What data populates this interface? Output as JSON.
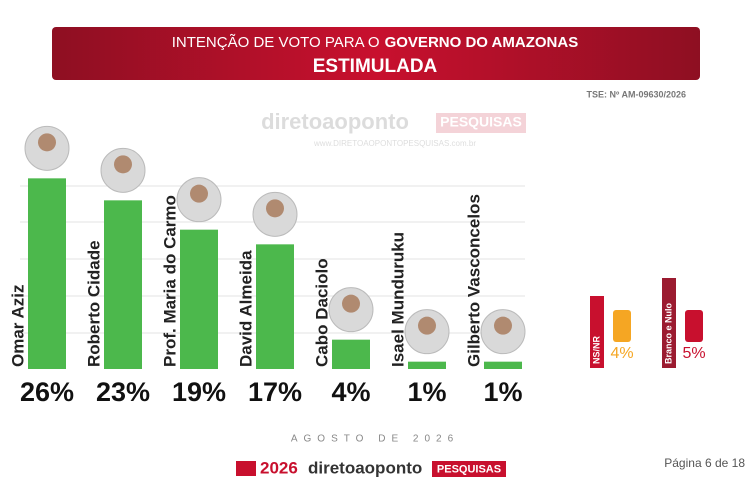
{
  "chart_data": {
    "type": "bar",
    "title_parts": [
      "INTENÇÃO DE VOTO PARA O",
      "GOVERNO DO AMAZONAS"
    ],
    "subtitle": "ESTIMULADA",
    "registration": "TSE: Nº AM-09630/2026",
    "watermark": [
      "diretoaoponto",
      "PESQUISAS",
      "www.DIRETOAOPONTOPESQUISAS.com.br"
    ],
    "categories": [
      "Omar Aziz",
      "Roberto Cidade",
      "Prof. Maria do Carmo",
      "David Almeida",
      "Cabo Daciolo",
      "Isael Munduruku",
      "Gilberto Vasconcelos"
    ],
    "values": [
      26,
      23,
      19,
      17,
      4,
      1,
      1
    ],
    "value_labels": [
      "26%",
      "23%",
      "19%",
      "17%",
      "4%",
      "1%",
      "1%"
    ],
    "color": "#4cb84c",
    "ylim": [
      0,
      30
    ],
    "others": [
      {
        "name": "NS/NR",
        "value": 4,
        "value_label": "4%",
        "color": "#c8102e",
        "label_color": "#f5a623"
      },
      {
        "name": "Branco e Nulo",
        "value": 5,
        "value_label": "5%",
        "color": "#9b1b30",
        "label_color": "#c8102e"
      }
    ],
    "footer_date": "AGOSTO DE 2026",
    "logo": [
      "2026",
      "diretoaoponto",
      "PESQUISAS"
    ],
    "page": "Página 6 de 18"
  }
}
